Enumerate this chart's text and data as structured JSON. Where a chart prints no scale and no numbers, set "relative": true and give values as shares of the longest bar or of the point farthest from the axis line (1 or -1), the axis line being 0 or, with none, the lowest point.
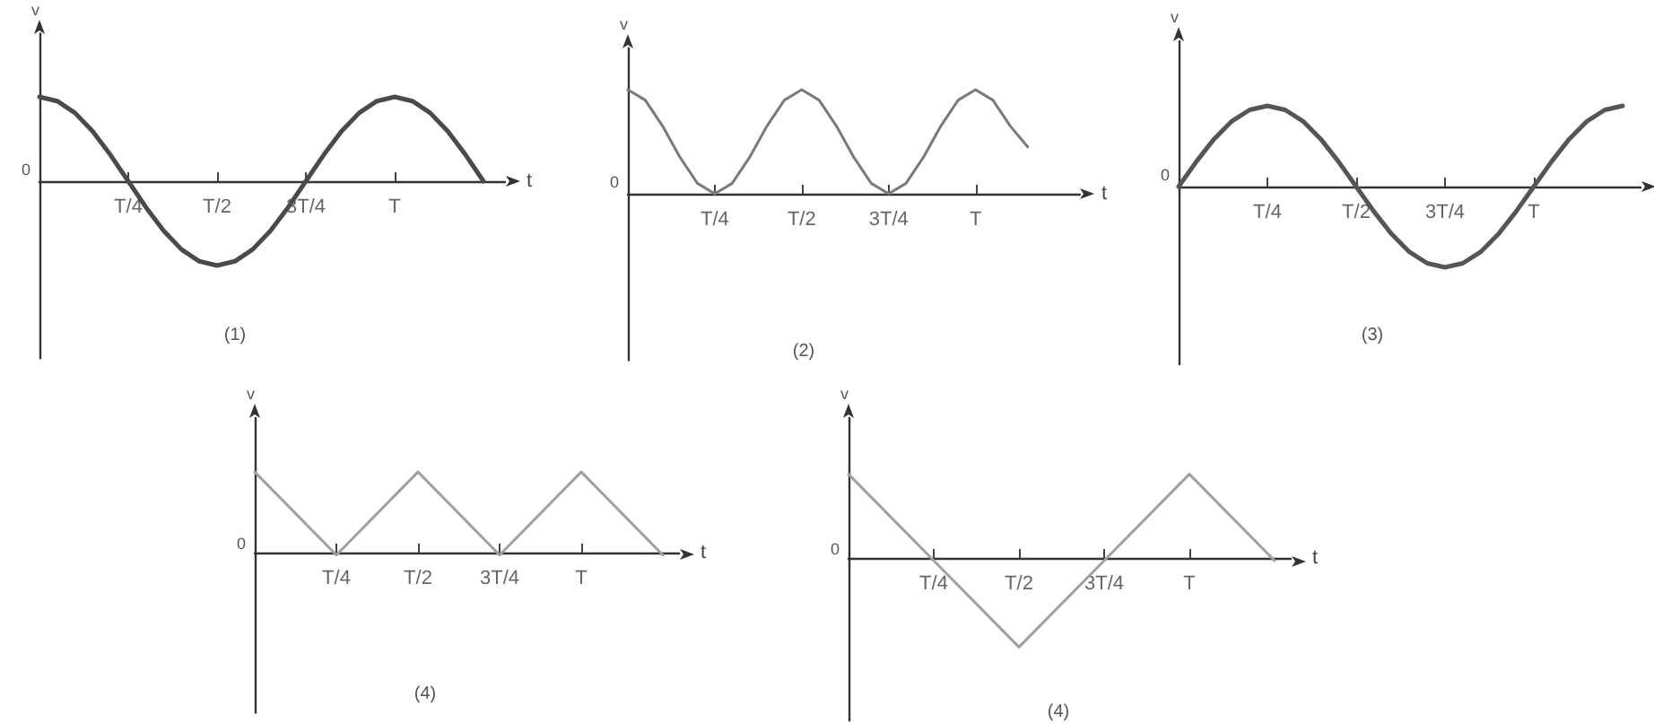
{
  "chart_data": [
    {
      "type": "line",
      "title": "(1)",
      "xlabel": "t",
      "ylabel": "v",
      "relative": true,
      "color": "#4a4a4a",
      "annotations": [
        "0"
      ],
      "categories": [
        null,
        null,
        null,
        null,
        null,
        "T/4",
        null,
        null,
        null,
        null,
        "T/2",
        null,
        null,
        null,
        null,
        "3T/4",
        null,
        null,
        null,
        null,
        "T",
        null,
        null,
        null,
        null,
        null
      ],
      "values": [
        1,
        0.95,
        0.81,
        0.59,
        0.31,
        0,
        -0.31,
        -0.59,
        -0.81,
        -0.95,
        -1,
        -0.95,
        -0.81,
        -0.59,
        -0.31,
        0,
        0.31,
        0.59,
        0.81,
        0.95,
        1,
        0.95,
        0.81,
        0.59,
        0.31,
        0
      ]
    },
    {
      "type": "line",
      "title": "(2)",
      "xlabel": "t",
      "ylabel": "v",
      "relative": true,
      "color": "#7a7a7a",
      "annotations": [
        "0"
      ],
      "categories": [
        null,
        null,
        null,
        null,
        null,
        "T/4",
        null,
        null,
        null,
        null,
        "T/2",
        null,
        null,
        null,
        null,
        "3T/4",
        null,
        null,
        null,
        null,
        "T",
        null,
        null,
        null
      ],
      "values": [
        1,
        0.9,
        0.65,
        0.35,
        0.1,
        0,
        0.1,
        0.35,
        0.65,
        0.9,
        1,
        0.9,
        0.65,
        0.35,
        0.1,
        0,
        0.1,
        0.35,
        0.65,
        0.9,
        1,
        0.9,
        0.65,
        0.45
      ]
    },
    {
      "type": "line",
      "title": "(3)",
      "ylabel": "v",
      "relative": true,
      "color": "#555555",
      "annotations": [
        "0"
      ],
      "categories": [
        null,
        null,
        null,
        null,
        null,
        "T/4",
        null,
        null,
        null,
        null,
        "T/2",
        null,
        null,
        null,
        null,
        "3T/4",
        null,
        null,
        null,
        null,
        "T",
        null,
        null,
        null,
        null,
        null
      ],
      "values": [
        0,
        0.31,
        0.59,
        0.81,
        0.95,
        1,
        0.95,
        0.81,
        0.59,
        0.31,
        0,
        -0.31,
        -0.59,
        -0.81,
        -0.95,
        -1,
        -0.95,
        -0.81,
        -0.59,
        -0.31,
        0,
        0.31,
        0.59,
        0.81,
        0.95,
        1
      ]
    },
    {
      "type": "line",
      "title": "(4)",
      "xlabel": "t",
      "ylabel": "v",
      "relative": true,
      "color": "#a0a0a0",
      "annotations": [
        "0"
      ],
      "categories": [
        null,
        "T/4",
        "T/2",
        "3T/4",
        "T",
        null
      ],
      "values": [
        1,
        0,
        1,
        0,
        1,
        0
      ]
    },
    {
      "type": "line",
      "title": "(4)",
      "xlabel": "t",
      "ylabel": "v",
      "relative": true,
      "color": "#a0a0a0",
      "annotations": [
        "0"
      ],
      "categories": [
        null,
        "T/4",
        "T/2",
        "3T/4",
        "T",
        null
      ],
      "values": [
        1,
        0,
        -1,
        0,
        1,
        0
      ]
    }
  ]
}
